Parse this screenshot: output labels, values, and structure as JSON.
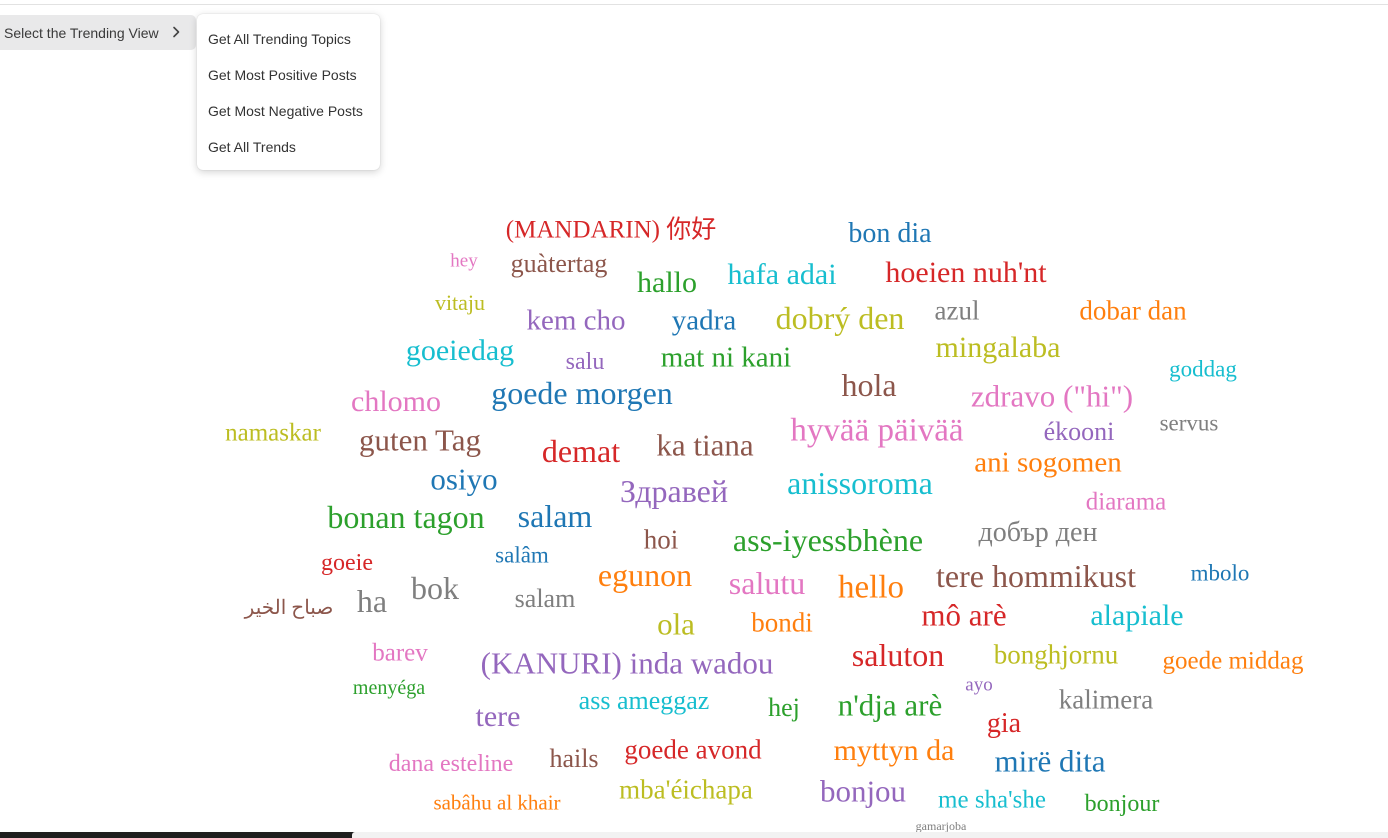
{
  "view_selector": {
    "label": "Select the Trending View",
    "chevron_icon": "chevron-right-icon"
  },
  "menu": {
    "items": [
      {
        "label": "Get All Trending Topics"
      },
      {
        "label": "Get Most Positive Posts"
      },
      {
        "label": "Get Most Negative Posts"
      },
      {
        "label": "Get All Trends"
      }
    ]
  },
  "word_cloud": {
    "words": [
      {
        "text": "(MANDARIN) 你好",
        "color": "#d62728"
      },
      {
        "text": "bon dia",
        "color": "#1f77b4"
      },
      {
        "text": "hey",
        "color": "#e377c2"
      },
      {
        "text": "guàtertag",
        "color": "#8c564b"
      },
      {
        "text": "hallo",
        "color": "#2ca02c"
      },
      {
        "text": "hafa adai",
        "color": "#17becf"
      },
      {
        "text": "hoeien nuh'nt",
        "color": "#d62728"
      },
      {
        "text": "vitaju",
        "color": "#bcbd22"
      },
      {
        "text": "kem cho",
        "color": "#9467bd"
      },
      {
        "text": "yadra",
        "color": "#1f77b4"
      },
      {
        "text": "dobrý den",
        "color": "#bcbd22"
      },
      {
        "text": "azul",
        "color": "#7f7f7f"
      },
      {
        "text": "dobar dan",
        "color": "#ff7f0e"
      },
      {
        "text": "goeiedag",
        "color": "#17becf"
      },
      {
        "text": "salu",
        "color": "#9467bd"
      },
      {
        "text": "mat ni kani",
        "color": "#2ca02c"
      },
      {
        "text": "mingalaba",
        "color": "#bcbd22"
      },
      {
        "text": "goddag",
        "color": "#17becf"
      },
      {
        "text": "chlomo",
        "color": "#e377c2"
      },
      {
        "text": "goede morgen",
        "color": "#1f77b4"
      },
      {
        "text": "hola",
        "color": "#8c564b"
      },
      {
        "text": "zdravo (\"hi\")",
        "color": "#e377c2"
      },
      {
        "text": "namaskar",
        "color": "#bcbd22"
      },
      {
        "text": "guten Tag",
        "color": "#8c564b"
      },
      {
        "text": "demat",
        "color": "#d62728"
      },
      {
        "text": "ka tiana",
        "color": "#8c564b"
      },
      {
        "text": "hyvää päivää",
        "color": "#e377c2"
      },
      {
        "text": "ékooni",
        "color": "#9467bd"
      },
      {
        "text": "servus",
        "color": "#7f7f7f"
      },
      {
        "text": "osiyo",
        "color": "#1f77b4"
      },
      {
        "text": "Здравей",
        "color": "#9467bd"
      },
      {
        "text": "anissoroma",
        "color": "#17becf"
      },
      {
        "text": "ani sogomen",
        "color": "#ff7f0e"
      },
      {
        "text": "diarama",
        "color": "#e377c2"
      },
      {
        "text": "bonan tagon",
        "color": "#2ca02c"
      },
      {
        "text": "salam",
        "color": "#1f77b4"
      },
      {
        "text": "hoi",
        "color": "#8c564b"
      },
      {
        "text": "ass-iyessbhène",
        "color": "#2ca02c"
      },
      {
        "text": "добър ден",
        "color": "#7f7f7f"
      },
      {
        "text": "goeie",
        "color": "#d62728"
      },
      {
        "text": "salâm",
        "color": "#1f77b4"
      },
      {
        "text": "egunon",
        "color": "#ff7f0e"
      },
      {
        "text": "salutu",
        "color": "#e377c2"
      },
      {
        "text": "hello",
        "color": "#ff7f0e"
      },
      {
        "text": "tere hommikust",
        "color": "#8c564b"
      },
      {
        "text": "mbolo",
        "color": "#1f77b4"
      },
      {
        "text": "صباح الخير",
        "color": "#8c564b"
      },
      {
        "text": "ha",
        "color": "#7f7f7f"
      },
      {
        "text": "bok",
        "color": "#7f7f7f"
      },
      {
        "text": "salam",
        "color": "#7f7f7f"
      },
      {
        "text": "ola",
        "color": "#bcbd22"
      },
      {
        "text": "bondi",
        "color": "#ff7f0e"
      },
      {
        "text": "mô arè",
        "color": "#d62728"
      },
      {
        "text": "alapiale",
        "color": "#17becf"
      },
      {
        "text": "barev",
        "color": "#e377c2"
      },
      {
        "text": "(KANURI) inda wadou",
        "color": "#9467bd"
      },
      {
        "text": "saluton",
        "color": "#d62728"
      },
      {
        "text": "bonghjornu",
        "color": "#bcbd22"
      },
      {
        "text": "goede middag",
        "color": "#ff7f0e"
      },
      {
        "text": "menyéga",
        "color": "#2ca02c"
      },
      {
        "text": "ayo",
        "color": "#9467bd"
      },
      {
        "text": "tere",
        "color": "#9467bd"
      },
      {
        "text": "ass ameggaz",
        "color": "#17becf"
      },
      {
        "text": "hej",
        "color": "#2ca02c"
      },
      {
        "text": "n'dja arè",
        "color": "#2ca02c"
      },
      {
        "text": "kalimera",
        "color": "#7f7f7f"
      },
      {
        "text": "gia",
        "color": "#d62728"
      },
      {
        "text": "dana esteline",
        "color": "#e377c2"
      },
      {
        "text": "hails",
        "color": "#8c564b"
      },
      {
        "text": "goede avond",
        "color": "#d62728"
      },
      {
        "text": "myttyn da",
        "color": "#ff7f0e"
      },
      {
        "text": "mirë dita",
        "color": "#1f77b4"
      },
      {
        "text": "sabâhu al khair",
        "color": "#ff7f0e"
      },
      {
        "text": "mba'éichapa",
        "color": "#bcbd22"
      },
      {
        "text": "bonjou",
        "color": "#9467bd"
      },
      {
        "text": "me sha'she",
        "color": "#17becf"
      },
      {
        "text": "bonjour",
        "color": "#2ca02c"
      },
      {
        "text": "gamarjoba",
        "color": "#7f7f7f"
      }
    ]
  }
}
